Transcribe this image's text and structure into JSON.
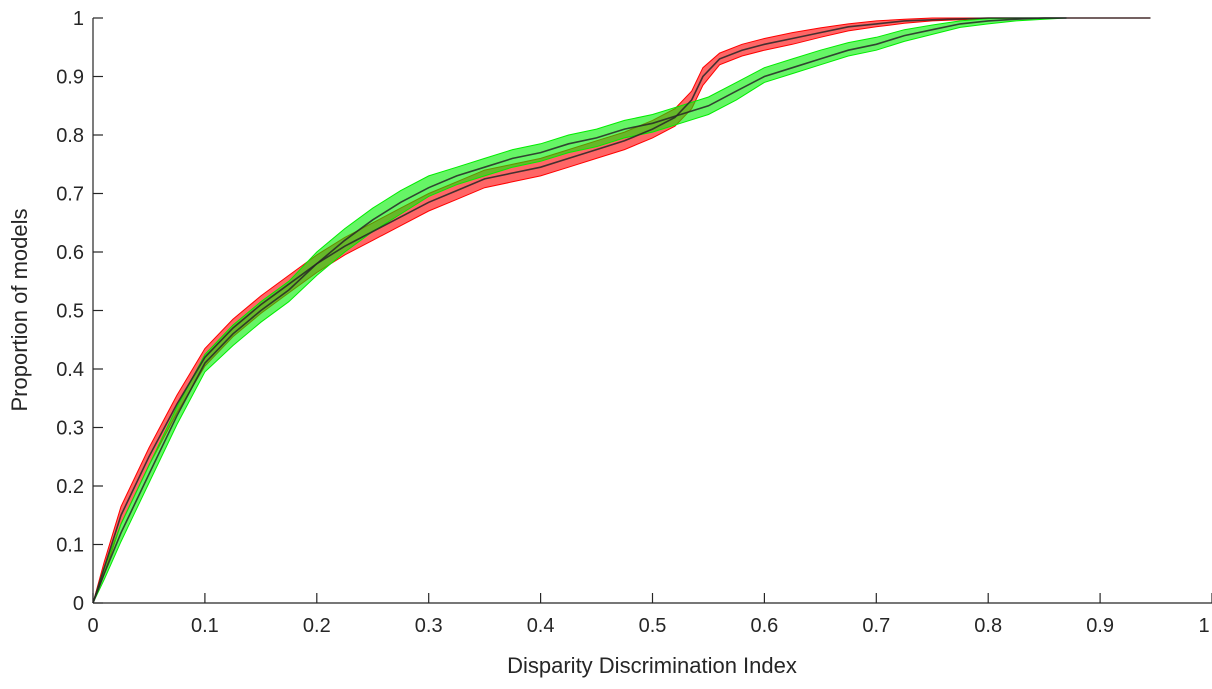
{
  "chart_data": {
    "type": "area",
    "xlabel": "Disparity Discrimination Index",
    "ylabel": "Proportion of models",
    "xlim": [
      0,
      1
    ],
    "ylim": [
      0,
      1
    ],
    "x_ticks": [
      "0",
      "0.1",
      "0.2",
      "0.3",
      "0.4",
      "0.5",
      "0.6",
      "0.7",
      "0.8",
      "0.9",
      "1"
    ],
    "y_ticks": [
      "0",
      "0.1",
      "0.2",
      "0.3",
      "0.4",
      "0.5",
      "0.6",
      "0.7",
      "0.8",
      "0.9",
      "1"
    ],
    "grid": false,
    "legend": "none",
    "series": [
      {
        "color": "#ff0000",
        "line_color": "#262626",
        "x": [
          0.0,
          0.01,
          0.025,
          0.05,
          0.075,
          0.1,
          0.125,
          0.15,
          0.175,
          0.2,
          0.225,
          0.25,
          0.275,
          0.3,
          0.325,
          0.35,
          0.375,
          0.4,
          0.425,
          0.45,
          0.475,
          0.5,
          0.52,
          0.535,
          0.545,
          0.56,
          0.58,
          0.6,
          0.625,
          0.65,
          0.675,
          0.7,
          0.725,
          0.75,
          0.8,
          0.85,
          0.9,
          0.945
        ],
        "mean": [
          0.0,
          0.06,
          0.15,
          0.25,
          0.34,
          0.42,
          0.47,
          0.51,
          0.545,
          0.58,
          0.61,
          0.635,
          0.66,
          0.685,
          0.705,
          0.725,
          0.735,
          0.745,
          0.76,
          0.775,
          0.79,
          0.81,
          0.83,
          0.86,
          0.9,
          0.93,
          0.945,
          0.955,
          0.965,
          0.975,
          0.985,
          0.99,
          0.995,
          0.997,
          1.0,
          1.0,
          1.0,
          1.0
        ],
        "lower": [
          0.0,
          0.05,
          0.135,
          0.235,
          0.325,
          0.405,
          0.455,
          0.495,
          0.53,
          0.565,
          0.595,
          0.62,
          0.645,
          0.67,
          0.69,
          0.71,
          0.72,
          0.73,
          0.745,
          0.76,
          0.775,
          0.795,
          0.815,
          0.845,
          0.885,
          0.92,
          0.935,
          0.945,
          0.955,
          0.967,
          0.978,
          0.985,
          0.991,
          0.995,
          0.999,
          1.0,
          1.0,
          1.0
        ],
        "upper": [
          0.0,
          0.07,
          0.165,
          0.265,
          0.355,
          0.435,
          0.485,
          0.525,
          0.56,
          0.595,
          0.625,
          0.65,
          0.675,
          0.7,
          0.72,
          0.74,
          0.75,
          0.76,
          0.775,
          0.79,
          0.805,
          0.825,
          0.845,
          0.875,
          0.915,
          0.94,
          0.955,
          0.965,
          0.975,
          0.983,
          0.99,
          0.995,
          0.998,
          1.0,
          1.0,
          1.0,
          1.0,
          1.0
        ]
      },
      {
        "color": "#00ee00",
        "line_color": "#262626",
        "x": [
          0.0,
          0.01,
          0.025,
          0.05,
          0.075,
          0.1,
          0.125,
          0.15,
          0.175,
          0.2,
          0.225,
          0.25,
          0.275,
          0.3,
          0.325,
          0.35,
          0.375,
          0.4,
          0.425,
          0.45,
          0.475,
          0.5,
          0.525,
          0.55,
          0.575,
          0.6,
          0.625,
          0.65,
          0.675,
          0.7,
          0.725,
          0.75,
          0.775,
          0.8,
          0.825,
          0.85,
          0.87
        ],
        "mean": [
          0.0,
          0.05,
          0.12,
          0.22,
          0.32,
          0.41,
          0.46,
          0.5,
          0.535,
          0.58,
          0.62,
          0.655,
          0.685,
          0.71,
          0.73,
          0.745,
          0.76,
          0.77,
          0.785,
          0.795,
          0.81,
          0.82,
          0.835,
          0.85,
          0.875,
          0.9,
          0.915,
          0.93,
          0.945,
          0.955,
          0.97,
          0.98,
          0.99,
          0.995,
          0.998,
          1.0,
          1.0
        ],
        "lower": [
          0.0,
          0.04,
          0.105,
          0.205,
          0.305,
          0.395,
          0.44,
          0.48,
          0.515,
          0.56,
          0.6,
          0.635,
          0.665,
          0.695,
          0.715,
          0.73,
          0.745,
          0.755,
          0.77,
          0.78,
          0.795,
          0.805,
          0.82,
          0.835,
          0.86,
          0.89,
          0.905,
          0.92,
          0.935,
          0.945,
          0.96,
          0.972,
          0.984,
          0.99,
          0.995,
          0.998,
          1.0
        ],
        "upper": [
          0.0,
          0.06,
          0.135,
          0.235,
          0.335,
          0.425,
          0.475,
          0.515,
          0.55,
          0.6,
          0.64,
          0.675,
          0.705,
          0.73,
          0.745,
          0.76,
          0.775,
          0.785,
          0.8,
          0.81,
          0.825,
          0.835,
          0.85,
          0.865,
          0.89,
          0.915,
          0.93,
          0.945,
          0.958,
          0.967,
          0.98,
          0.988,
          0.995,
          0.999,
          1.0,
          1.0,
          1.0
        ]
      }
    ]
  }
}
